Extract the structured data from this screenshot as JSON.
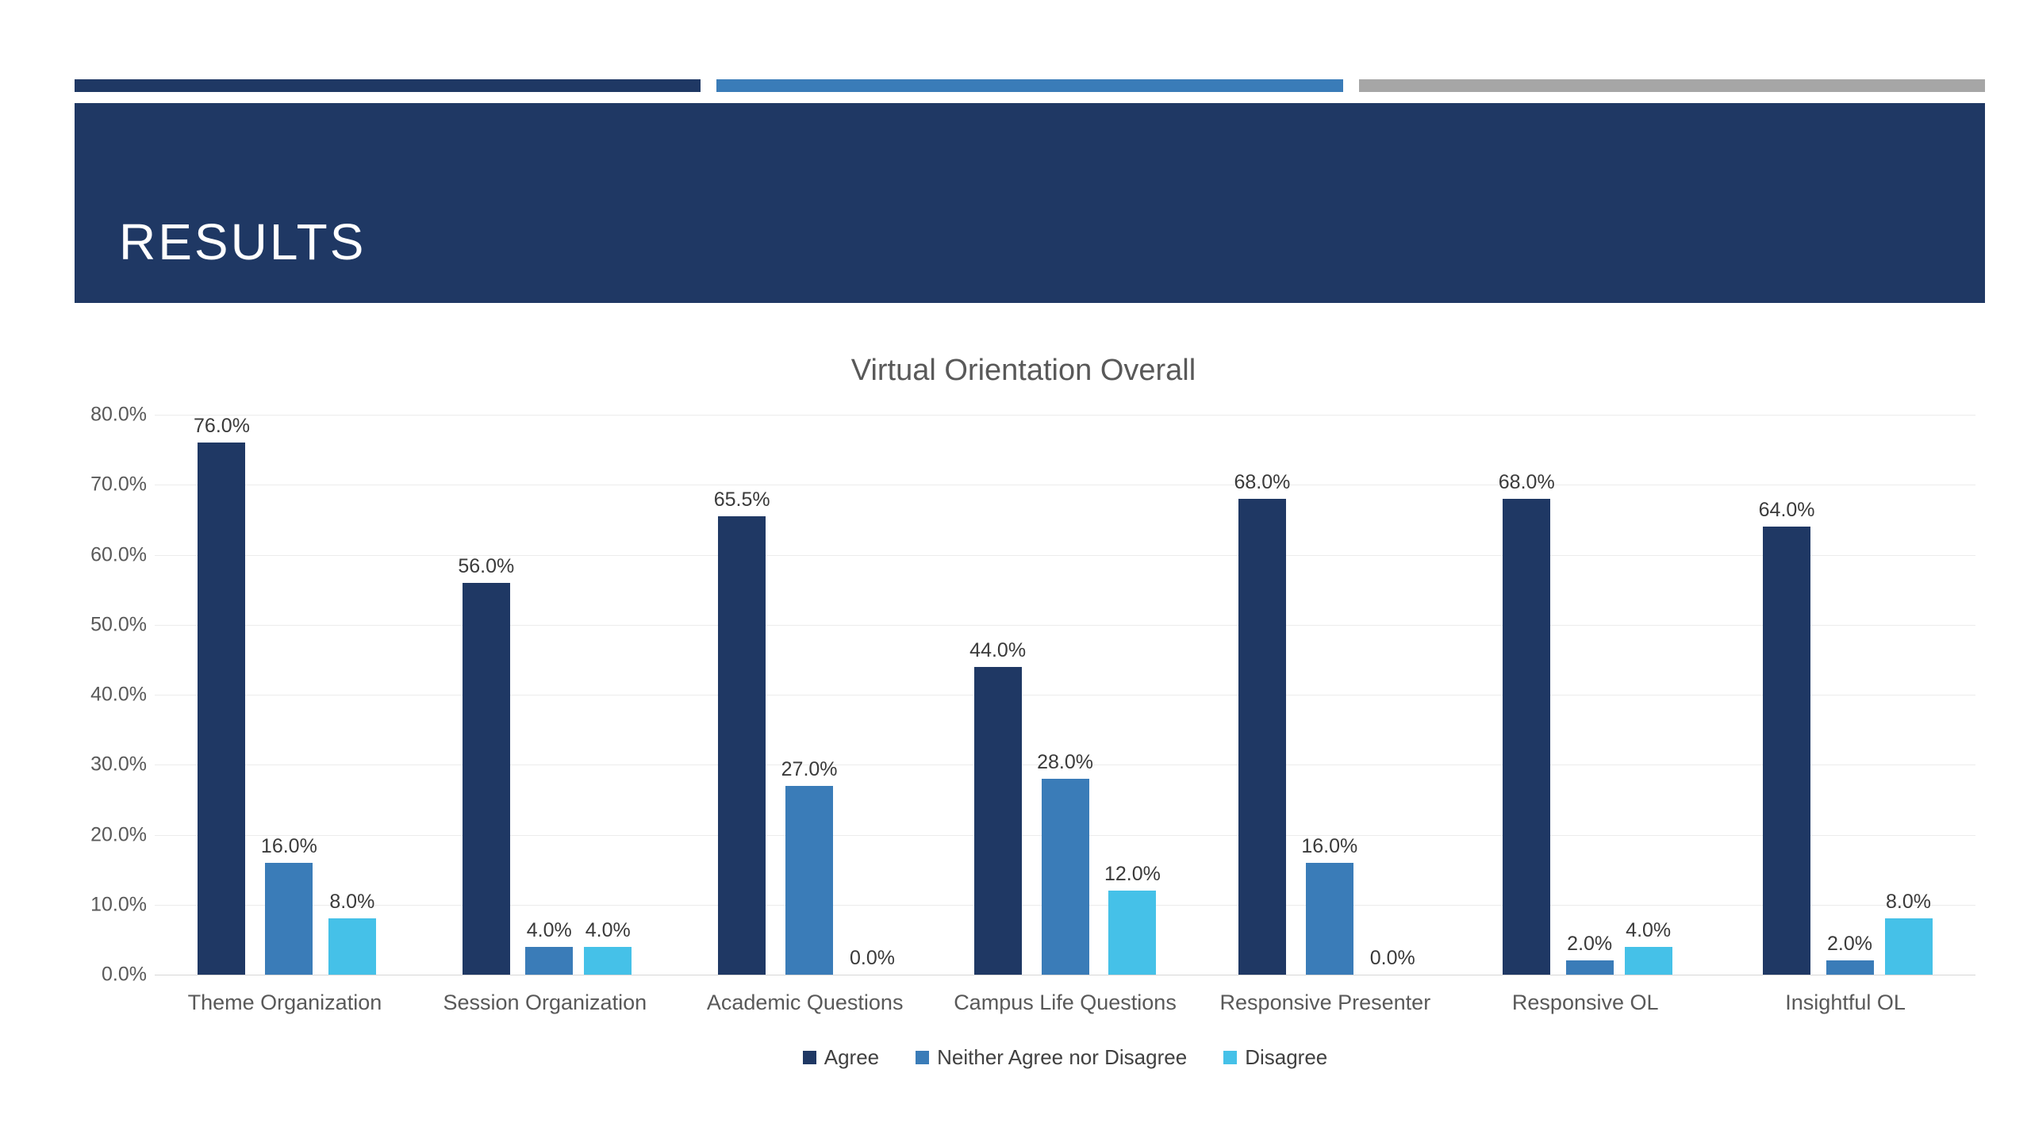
{
  "slide": {
    "header": {
      "title": "RESULTS"
    },
    "accent_bars": [
      {
        "name": "navy",
        "color": "#1F3864"
      },
      {
        "name": "steel",
        "color": "#3A7CB8"
      },
      {
        "name": "gray",
        "color": "#A6A6A6"
      }
    ]
  },
  "chart_data": {
    "type": "bar",
    "title": "Virtual Orientation Overall",
    "categories": [
      "Theme Organization",
      "Session Organization",
      "Academic Questions",
      "Campus Life Questions",
      "Responsive Presenter",
      "Responsive OL",
      "Insightful OL"
    ],
    "series": [
      {
        "name": "Agree",
        "color": "#1F3864",
        "values": [
          76.0,
          56.0,
          65.5,
          44.0,
          68.0,
          68.0,
          64.0
        ]
      },
      {
        "name": "Neither Agree nor Disagree",
        "color": "#3A7CB8",
        "values": [
          16.0,
          4.0,
          27.0,
          28.0,
          16.0,
          2.0,
          2.0
        ]
      },
      {
        "name": "Disagree",
        "color": "#45C1E8",
        "values": [
          8.0,
          4.0,
          0.0,
          12.0,
          0.0,
          4.0,
          8.0
        ]
      }
    ],
    "ylim": [
      0,
      80
    ],
    "ytick_labels": [
      "80.0%",
      "70.0%",
      "60.0%",
      "50.0%",
      "40.0%",
      "30.0%",
      "20.0%",
      "10.0%",
      "0.0%"
    ],
    "grid": true,
    "legend_position": "bottom",
    "value_label_format": "one_decimal_percent"
  }
}
